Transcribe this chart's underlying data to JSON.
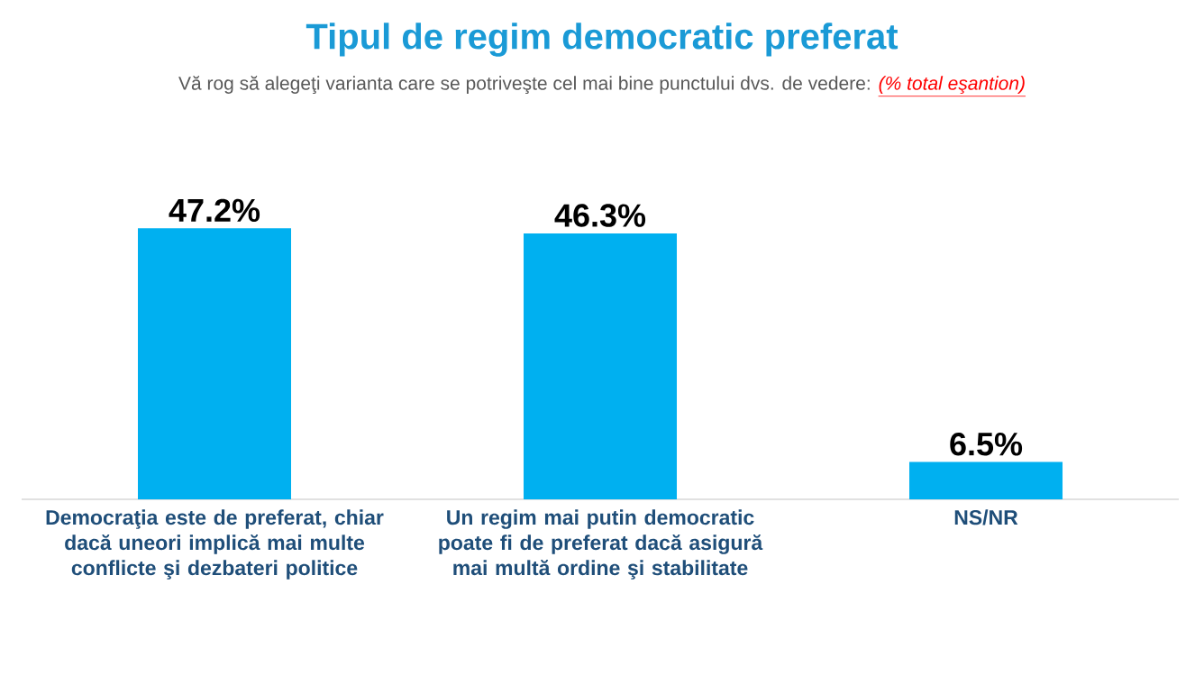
{
  "chart_data": {
    "type": "bar",
    "title": "Tipul de regim democratic preferat",
    "subtitle": "Vă rog să alegeţi varianta care se potriveşte cel mai bine punctului dvs. de vedere:",
    "annotations": [
      "(% total eşantion)"
    ],
    "categories": [
      "Democraţia este de preferat, chiar dacă uneori implică mai multe conflicte şi dezbateri politice",
      "Un regim mai putin democratic poate fi de preferat dacă asigură mai multă ordine şi stabilitate",
      "NS/NR"
    ],
    "values": [
      47.2,
      46.3,
      6.5
    ],
    "color": "#00b0f0",
    "value_labels": [
      "47.2%",
      "46.3%",
      "6.5%"
    ]
  }
}
